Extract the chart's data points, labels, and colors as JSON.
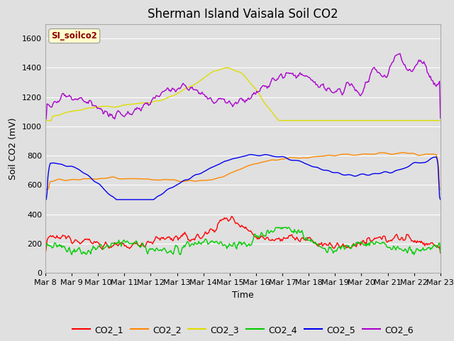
{
  "title": "Sherman Island Vaisala Soil CO2",
  "xlabel": "Time",
  "ylabel": "Soil CO2 (mV)",
  "legend_label": "SI_soilco2",
  "series_names": [
    "CO2_1",
    "CO2_2",
    "CO2_3",
    "CO2_4",
    "CO2_5",
    "CO2_6"
  ],
  "series_colors": [
    "#ff0000",
    "#ff8800",
    "#dddd00",
    "#00cc00",
    "#0000ee",
    "#aa00cc"
  ],
  "x_tick_labels": [
    "Mar 8",
    "Mar 9",
    "Mar 10",
    "Mar 11",
    "Mar 12",
    "Mar 13",
    "Mar 14",
    "Mar 15",
    "Mar 16",
    "Mar 17",
    "Mar 18",
    "Mar 19",
    "Mar 20",
    "Mar 21",
    "Mar 22",
    "Mar 23"
  ],
  "ylim": [
    0,
    1700
  ],
  "yticks": [
    0,
    200,
    400,
    600,
    800,
    1000,
    1200,
    1400,
    1600
  ],
  "n_points": 480,
  "bg_color": "#e0e0e0",
  "grid_color": "#ffffff",
  "title_fontsize": 12,
  "axis_label_fontsize": 9,
  "tick_fontsize": 8,
  "legend_fontsize": 9
}
